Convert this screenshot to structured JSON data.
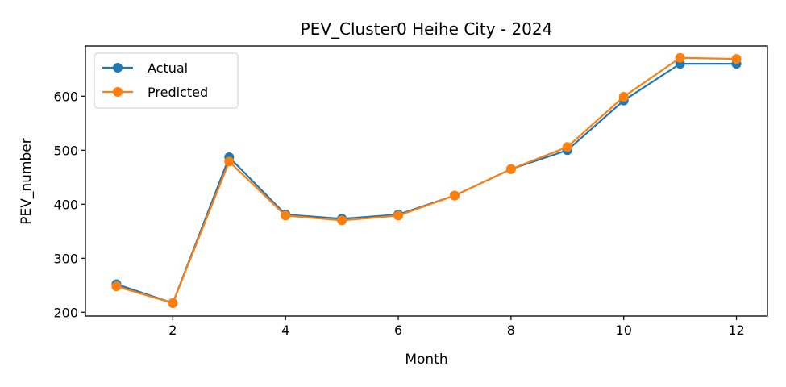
{
  "chart_data": {
    "type": "line",
    "title": "PEV_Cluster0 Heihe City - 2024",
    "xlabel": "Month",
    "ylabel": "PEV_number",
    "x": [
      1,
      2,
      3,
      4,
      5,
      6,
      7,
      8,
      9,
      10,
      11,
      12
    ],
    "xticks": [
      2,
      4,
      6,
      8,
      10,
      12
    ],
    "yticks": [
      200,
      300,
      400,
      500,
      600
    ],
    "xlim": [
      0.45,
      12.55
    ],
    "ylim": [
      193,
      693
    ],
    "grid": false,
    "legend_position": "top-left",
    "series": [
      {
        "name": "Actual",
        "color": "#1f77b4",
        "values": [
          252,
          217,
          487,
          381,
          373,
          381,
          416,
          465,
          500,
          592,
          660,
          660
        ]
      },
      {
        "name": "Predicted",
        "color": "#ff7f0e",
        "values": [
          248,
          217,
          479,
          379,
          370,
          379,
          416,
          465,
          506,
          599,
          671,
          669
        ]
      }
    ]
  }
}
